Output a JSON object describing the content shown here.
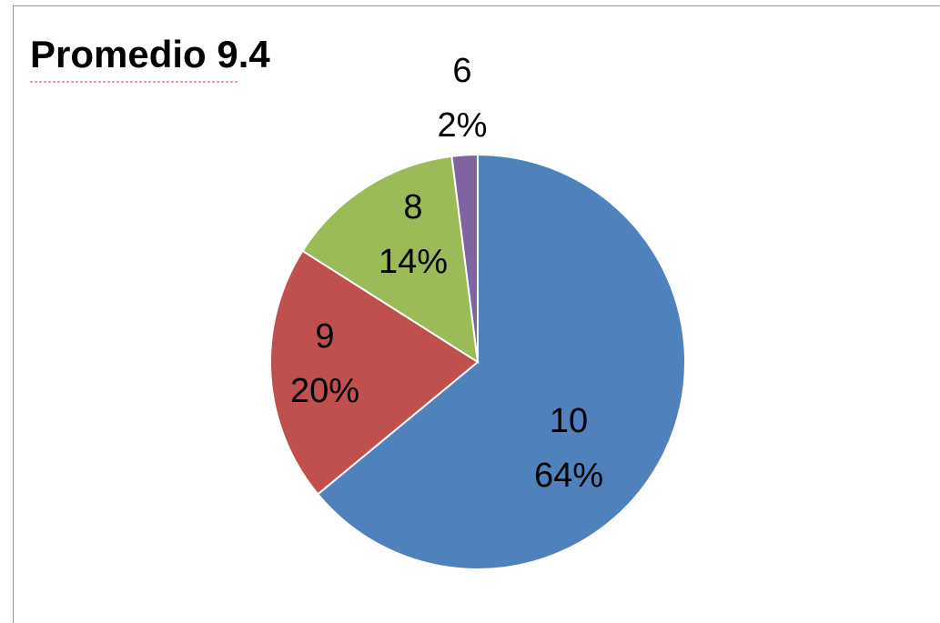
{
  "chart_data": {
    "type": "pie",
    "title": "Promedio 9.4",
    "categories": [
      "10",
      "9",
      "8",
      "6"
    ],
    "values": [
      64,
      20,
      14,
      2
    ],
    "labels": [
      "64%",
      "20%",
      "14%",
      "2%"
    ],
    "colors": [
      "#4f81bd",
      "#c0504d",
      "#9bbb59",
      "#8064a2"
    ],
    "legend": "none"
  }
}
